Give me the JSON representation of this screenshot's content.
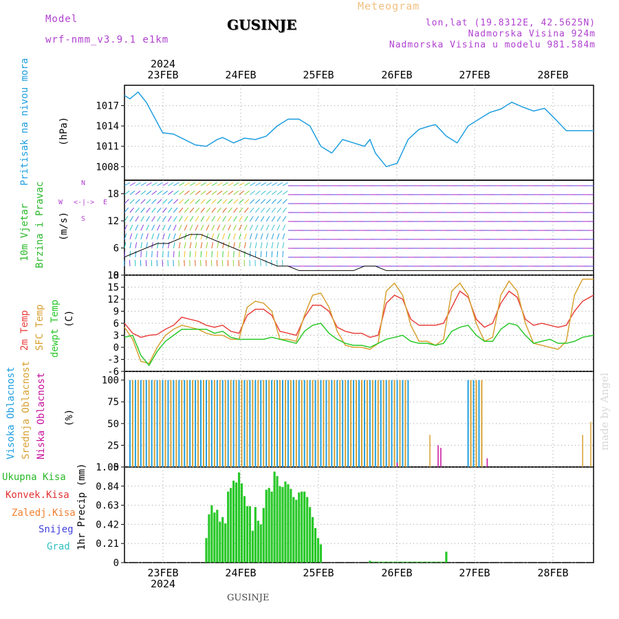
{
  "header": {
    "model_label": "Model",
    "model_name": "wrf-nmm_v3.9.1 e1km",
    "title": "GUSINJE",
    "meteogram": "Meteogram",
    "lonlat": "lon,lat (19.8312E, 42.5625N)",
    "altitude": "Nadmorska Visina 924m",
    "model_altitude": "Nadmorska Visina u modelu 981.584m"
  },
  "footer": {
    "station": "GUSINJE",
    "watermark": "made by Angel"
  },
  "time_axis": {
    "year": "2024",
    "dates": [
      "23FEB",
      "24FEB",
      "25FEB",
      "26FEB",
      "27FEB",
      "28FEB"
    ]
  },
  "colors": {
    "pressure": "#1e9ee0",
    "temp2m": "#e8403c",
    "sfc": "#d8a030",
    "dewpt": "#28c828",
    "high": "#1e9ee0",
    "mid": "#d8a030",
    "low": "#c8109c",
    "precip": "#28c828",
    "label_green": "#2ab82a",
    "label_red": "#e03030",
    "label_orange": "#f08030",
    "label_blue": "#4040e0",
    "label_cyan": "#30c0c0",
    "label_purple": "#b040d0"
  },
  "panels": {
    "pressure": {
      "label": "Pritisak na nivou mora",
      "unit": "(hPa)",
      "yticks": [
        "1017",
        "1014",
        "1011",
        "1008"
      ]
    },
    "wind": {
      "label1": "10m Vjetar",
      "label2": "Brzina i Pravac",
      "unit": "(m/s)",
      "yticks": [
        "18",
        "12",
        "6",
        "0"
      ],
      "compass": {
        "n": "N",
        "w": "W",
        "e": "E",
        "s": "S"
      }
    },
    "temp": {
      "label1": "2m Temp",
      "label2": "SFC Temp",
      "label3": "dewpt Temp",
      "unit": "(C)",
      "yticks": [
        "18",
        "15",
        "12",
        "9",
        "6",
        "3",
        "0",
        "-3",
        "-6"
      ]
    },
    "cloud": {
      "label1": "Visoka Oblacnost",
      "label2": "Srednja Oblacnost",
      "label3": "Niska Oblacnost",
      "unit": "(%)",
      "yticks": [
        "100",
        "75",
        "50",
        "25",
        "0"
      ]
    },
    "precip": {
      "legend": [
        "Ukupna Kisa",
        "Konvek.Kisa",
        "Zaledj.Kisa",
        "Snijeg",
        "Grad"
      ],
      "unit": "1hr Precip (mm)",
      "yticks": [
        "1.05",
        "0.84",
        "0.63",
        "0.42",
        "0.21",
        "0"
      ]
    }
  },
  "chart_data": [
    {
      "type": "line",
      "name": "pressure",
      "x_hours": [
        0,
        2,
        5,
        8,
        10,
        14,
        18,
        22,
        26,
        30,
        34,
        36,
        40,
        44,
        48,
        52,
        56,
        60,
        64,
        68,
        72,
        76,
        80,
        84,
        88,
        90,
        92,
        96,
        100,
        104,
        108,
        112,
        114,
        118,
        122,
        126,
        130,
        134,
        138,
        142,
        146,
        150,
        154,
        158,
        162,
        166,
        170,
        172
      ],
      "values": [
        1018.5,
        1018,
        1019,
        1017.5,
        1016,
        1013,
        1012.8,
        1012,
        1011.2,
        1011,
        1012,
        1012.3,
        1011.5,
        1012.2,
        1012,
        1012.5,
        1014,
        1015,
        1015,
        1014,
        1011,
        1010,
        1012,
        1011.5,
        1011,
        1012,
        1010,
        1008,
        1008.5,
        1012,
        1013.5,
        1014,
        1014.2,
        1012.5,
        1011.5,
        1014,
        1015,
        1016,
        1016.5,
        1017.5,
        1016.8,
        1016.2,
        1016.6,
        1015,
        1013.3,
        1013.3,
        1013.3,
        1013.3
      ],
      "ylim": [
        1006,
        1020
      ]
    },
    {
      "type": "line",
      "name": "temperature",
      "x_hours": [
        0,
        3,
        6,
        9,
        12,
        15,
        18,
        21,
        24,
        27,
        30,
        33,
        36,
        39,
        42,
        45,
        48,
        51,
        54,
        57,
        60,
        63,
        66,
        69,
        72,
        75,
        78,
        81,
        84,
        87,
        90,
        93,
        96,
        99,
        102,
        105,
        108,
        111,
        114,
        117,
        120,
        123,
        126,
        129,
        132,
        135,
        138,
        141,
        144,
        147,
        150,
        153,
        156,
        159,
        162,
        165,
        168,
        172
      ],
      "series": [
        {
          "name": "2m Temp",
          "values": [
            6,
            3.5,
            2.5,
            3,
            3.2,
            4.5,
            5.5,
            7.5,
            7,
            6.5,
            5.5,
            5,
            5.5,
            4,
            3.5,
            8,
            9.5,
            9.5,
            8,
            4,
            3.5,
            3,
            7.5,
            10.5,
            10.5,
            9,
            5,
            4,
            3.5,
            3.5,
            2.5,
            3,
            11,
            13,
            12,
            7,
            5.5,
            5.5,
            5.5,
            6,
            10,
            14,
            12.5,
            7,
            5,
            6,
            11,
            14,
            12.5,
            7,
            5.5,
            6,
            5.5,
            5,
            5.5,
            9,
            11.5,
            13
          ]
        },
        {
          "name": "SFC Temp",
          "values": [
            5,
            2,
            -3.5,
            -4,
            0,
            3,
            4.5,
            5.5,
            5,
            4.5,
            3.5,
            3,
            3,
            2,
            2,
            10,
            11.5,
            11,
            9,
            2,
            2,
            1.5,
            8,
            13,
            13.5,
            10,
            4,
            0.5,
            0,
            0,
            -0.5,
            1,
            14,
            16,
            13,
            5.5,
            1.5,
            1.5,
            0.5,
            2,
            14,
            16,
            13,
            6,
            1.5,
            2.5,
            13,
            16.5,
            14,
            6,
            1,
            0.5,
            0,
            -0.5,
            1.5,
            13,
            17,
            17
          ]
        },
        {
          "name": "dewpt Temp",
          "values": [
            2.5,
            3,
            -2,
            -4.5,
            -1,
            1.5,
            3,
            4.5,
            4.5,
            4.5,
            4.5,
            3.5,
            4,
            2.5,
            2,
            2,
            2,
            2,
            2.5,
            2,
            1.5,
            1,
            4,
            5.5,
            6,
            3.5,
            2,
            1,
            0.5,
            0.5,
            0,
            1,
            2,
            2.5,
            3,
            1.5,
            1,
            1,
            0.5,
            1,
            4,
            5,
            5.5,
            3,
            1.5,
            1.5,
            4.5,
            6,
            5.5,
            3,
            1,
            1.5,
            2,
            1,
            1,
            1.5,
            2.5,
            3
          ]
        }
      ],
      "ylim": [
        -6,
        18
      ]
    },
    {
      "type": "bar",
      "name": "precipitation",
      "x_hours": [
        30,
        31,
        32,
        33,
        34,
        35,
        36,
        37,
        38,
        39,
        40,
        41,
        42,
        43,
        44,
        45,
        46,
        47,
        48,
        49,
        50,
        51,
        52,
        53,
        54,
        55,
        56,
        57,
        58,
        59,
        60,
        61,
        62,
        63,
        64,
        65,
        66,
        67,
        68,
        69,
        70,
        71,
        72,
        90,
        91,
        92,
        93,
        94,
        95,
        96,
        97,
        98,
        99,
        100,
        101,
        102,
        103,
        104,
        105,
        106,
        107,
        108,
        109,
        110,
        111,
        112,
        113,
        114,
        115,
        116,
        117,
        118
      ],
      "values": [
        0.27,
        0.53,
        0.63,
        0.55,
        0.58,
        0.45,
        0.5,
        0.43,
        0.78,
        0.82,
        0.9,
        0.88,
        0.99,
        0.87,
        0.73,
        0.62,
        0.62,
        0.35,
        0.61,
        0.46,
        0.42,
        0.6,
        0.8,
        0.82,
        0.78,
        1.0,
        0.95,
        0.84,
        0.83,
        0.89,
        0.86,
        0.81,
        0.72,
        0.69,
        0.77,
        0.78,
        0.78,
        0.72,
        0.61,
        0.5,
        0.38,
        0.27,
        0.2,
        0.02,
        0.01,
        0.01,
        0.01,
        0.01,
        0.01,
        0.01,
        0.01,
        0.01,
        0.01,
        0.01,
        0.01,
        0.01,
        0.01,
        0.01,
        0.01,
        0.01,
        0.01,
        0.01,
        0.01,
        0.01,
        0.01,
        0.01,
        0.01,
        0.01,
        0.01,
        0.01,
        0.01,
        0.12
      ],
      "ylim": [
        0,
        1.05
      ]
    }
  ]
}
